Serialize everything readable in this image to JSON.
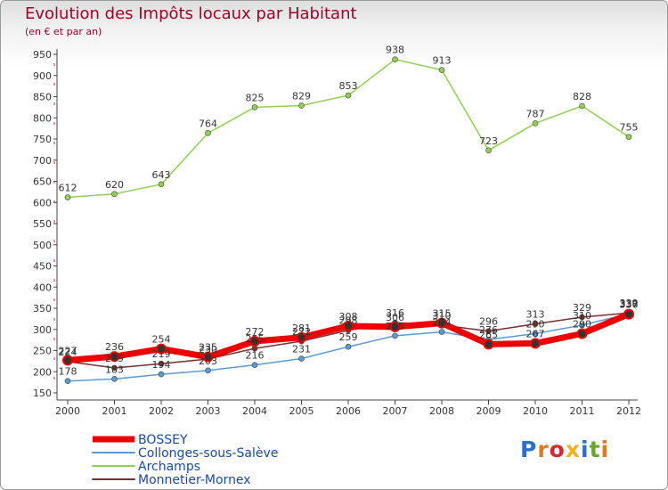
{
  "header": {
    "title": "Evolution des Impôts locaux par Habitant",
    "subtitle": "(en € et par an)"
  },
  "brand": {
    "text": "Proxiti",
    "colors": [
      "#2a6fc9",
      "#e37a1c",
      "#d7282f",
      "#f2b21c",
      "#2a6fc9",
      "#68a92d",
      "#e37a1c"
    ]
  },
  "chart_data": {
    "type": "line",
    "title": "Evolution des Impôts locaux par Habitant",
    "subtitle": "(en € et par an)",
    "xlabel": "",
    "ylabel": "",
    "x": [
      "2000",
      "2001",
      "2002",
      "2003",
      "2004",
      "2005",
      "2006",
      "2007",
      "2008",
      "2009",
      "2010",
      "2011",
      "2012"
    ],
    "ylim": [
      150,
      950
    ],
    "yticks": [
      150,
      200,
      250,
      300,
      350,
      400,
      450,
      500,
      550,
      600,
      650,
      700,
      750,
      800,
      850,
      900,
      950
    ],
    "grid": false,
    "legend_position": "bottom-left",
    "series": [
      {
        "name": "BOSSEY",
        "color": "#ee0000",
        "values": [
          227,
          236,
          254,
          235,
          272,
          281,
          308,
          306,
          315,
          265,
          267,
          290,
          336
        ]
      },
      {
        "name": "Collonges-sous-Salève",
        "color": "#5b9bd5",
        "values": [
          178,
          183,
          194,
          203,
          216,
          231,
          259,
          285,
          294,
          276,
          290,
          310,
          337
        ]
      },
      {
        "name": "Archamps",
        "color": "#8fd14f",
        "values": [
          612,
          620,
          643,
          764,
          825,
          829,
          853,
          938,
          913,
          723,
          787,
          828,
          755
        ]
      },
      {
        "name": "Monnetier-Mornex",
        "color": "#7b2e2e",
        "values": [
          224,
          209,
          219,
          230,
          255,
          272,
          298,
          316,
          310,
          296,
          313,
          329,
          339
        ]
      }
    ]
  }
}
